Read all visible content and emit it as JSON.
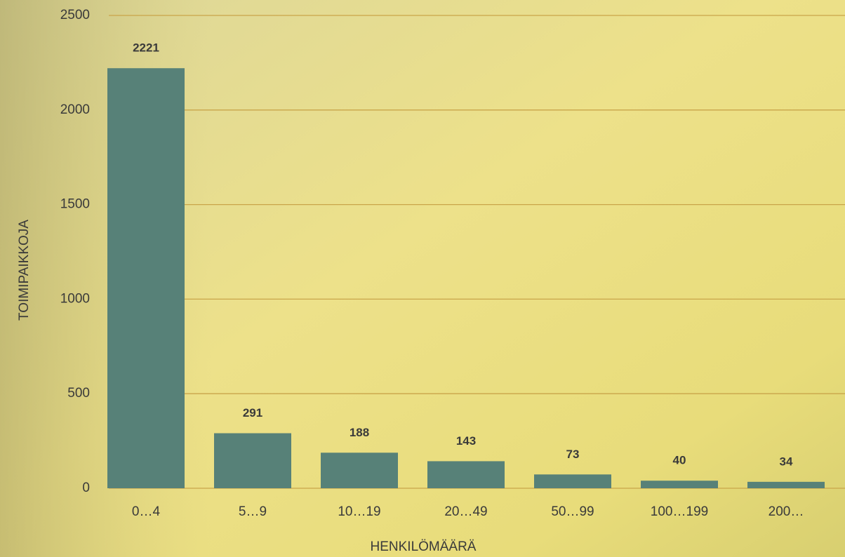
{
  "chart_data": {
    "type": "bar",
    "xlabel": "HENKILÖMÄÄRÄ",
    "ylabel": "TOIMIPAIKKOJA",
    "categories": [
      "0…4",
      "5…9",
      "10…19",
      "20…49",
      "50…99",
      "100…199",
      "200…"
    ],
    "values": [
      2221,
      291,
      188,
      143,
      73,
      40,
      34
    ],
    "color": "#578178",
    "ylim": [
      0,
      2500
    ],
    "yticks": [
      0,
      500,
      1000,
      1500,
      2000,
      2500
    ],
    "grid": true
  }
}
